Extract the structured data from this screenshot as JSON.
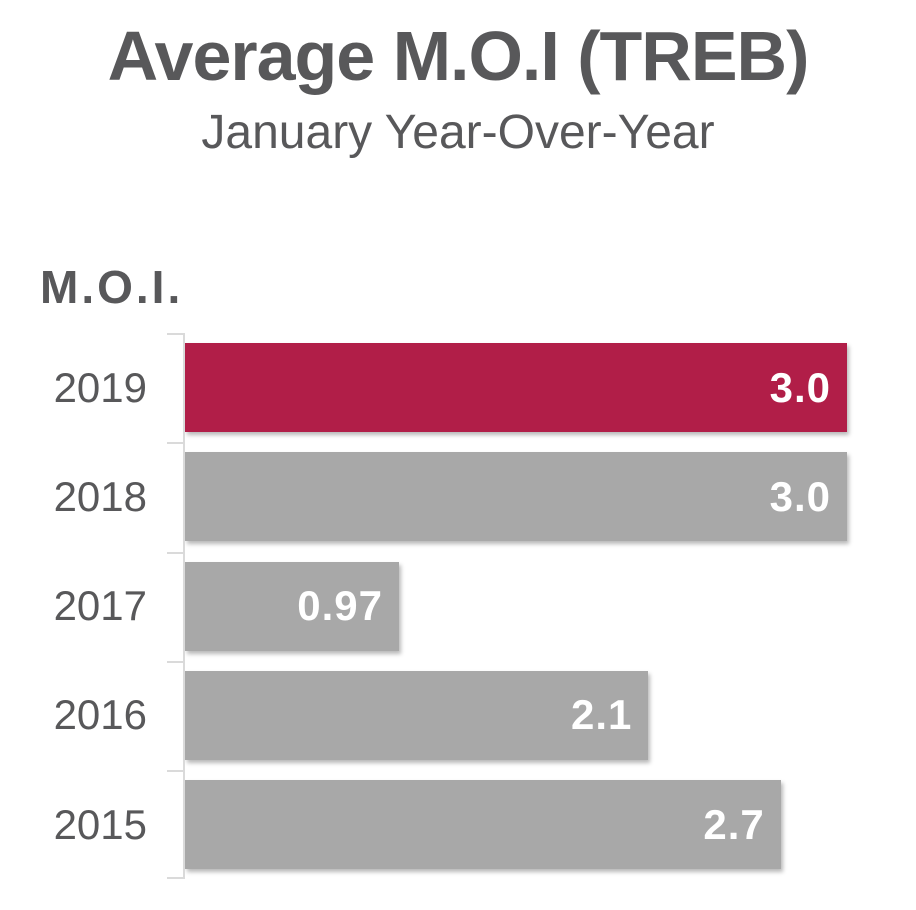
{
  "title": "Average M.O.I (TREB)",
  "subtitle": "January Year-Over-Year",
  "axis_label": "M.O.I.",
  "colors": {
    "highlight_bar": "#B11E48",
    "default_bar": "#A8A8A8",
    "text": "#58585A",
    "value_text": "#FFFFFF",
    "axis_line": "#DADADA"
  },
  "chart_data": {
    "type": "bar",
    "orientation": "horizontal",
    "title": "Average M.O.I (TREB)",
    "subtitle": "January Year-Over-Year",
    "ylabel": "M.O.I.",
    "xlabel": "",
    "categories": [
      "2019",
      "2018",
      "2017",
      "2016",
      "2015"
    ],
    "values": [
      3.0,
      3.0,
      0.97,
      2.1,
      2.7
    ],
    "value_labels": [
      "3.0",
      "3.0",
      "0.97",
      "2.1",
      "2.7"
    ],
    "highlighted_category": "2019",
    "xlim": [
      0,
      3.0
    ],
    "grid": false,
    "legend": false
  }
}
